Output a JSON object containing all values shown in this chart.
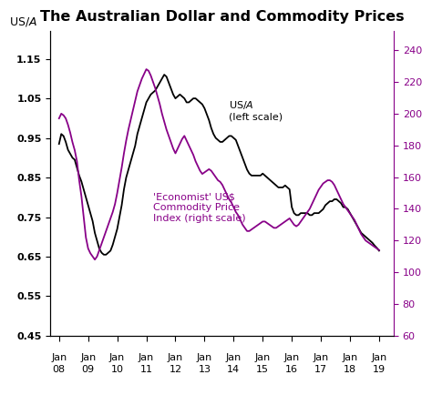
{
  "title": "The Australian Dollar and Commodity Prices",
  "ylabel_left": "US$/A$",
  "ylim_left": [
    0.45,
    1.22
  ],
  "ylim_right": [
    60,
    252
  ],
  "yticks_left": [
    0.45,
    0.55,
    0.65,
    0.75,
    0.85,
    0.95,
    1.05,
    1.15
  ],
  "yticks_right": [
    60,
    80,
    100,
    120,
    140,
    160,
    180,
    200,
    220,
    240
  ],
  "xtick_labels_top": [
    "Jan",
    "Jan",
    "Jan",
    "Jan",
    "Jan",
    "Jan",
    "Jan",
    "Jan",
    "Jan",
    "Jan",
    "Jan",
    "Jan"
  ],
  "xtick_labels_bot": [
    "08",
    "09",
    "10",
    "11",
    "12",
    "13",
    "14",
    "15",
    "16",
    "17",
    "18",
    "19"
  ],
  "line1_color": "#000000",
  "line2_color": "#880088",
  "annotation1": "US$/A$\n(left scale)",
  "annotation2": "'Economist' US$\nCommodity Price\nIndex (right scale)",
  "annotation1_color": "#000000",
  "annotation2_color": "#880088",
  "background_color": "#ffffff",
  "aus_dollar": [
    0.935,
    0.96,
    0.955,
    0.94,
    0.92,
    0.91,
    0.9,
    0.895,
    0.875,
    0.855,
    0.84,
    0.82,
    0.8,
    0.78,
    0.76,
    0.74,
    0.71,
    0.69,
    0.67,
    0.66,
    0.655,
    0.655,
    0.66,
    0.665,
    0.68,
    0.7,
    0.72,
    0.75,
    0.78,
    0.82,
    0.85,
    0.87,
    0.89,
    0.91,
    0.93,
    0.96,
    0.98,
    1.0,
    1.02,
    1.04,
    1.05,
    1.06,
    1.065,
    1.07,
    1.08,
    1.09,
    1.1,
    1.11,
    1.105,
    1.09,
    1.075,
    1.06,
    1.05,
    1.055,
    1.06,
    1.055,
    1.05,
    1.04,
    1.04,
    1.045,
    1.05,
    1.05,
    1.045,
    1.04,
    1.035,
    1.025,
    1.01,
    0.995,
    0.975,
    0.96,
    0.95,
    0.945,
    0.94,
    0.94,
    0.945,
    0.95,
    0.955,
    0.955,
    0.95,
    0.945,
    0.93,
    0.915,
    0.9,
    0.885,
    0.87,
    0.86,
    0.855,
    0.855,
    0.855,
    0.855,
    0.855,
    0.86,
    0.855,
    0.85,
    0.845,
    0.84,
    0.835,
    0.83,
    0.825,
    0.825,
    0.825,
    0.83,
    0.825,
    0.82,
    0.775,
    0.76,
    0.755,
    0.755,
    0.76,
    0.76,
    0.76,
    0.76,
    0.755,
    0.755,
    0.76,
    0.76,
    0.76,
    0.765,
    0.77,
    0.78,
    0.785,
    0.79,
    0.79,
    0.795,
    0.795,
    0.79,
    0.785,
    0.775,
    0.775,
    0.77,
    0.76,
    0.75,
    0.74,
    0.73,
    0.72,
    0.71,
    0.705,
    0.7,
    0.695,
    0.69,
    0.685,
    0.678,
    0.672,
    0.665
  ],
  "commodity": [
    197,
    200,
    199,
    197,
    193,
    188,
    182,
    177,
    170,
    158,
    148,
    135,
    122,
    115,
    112,
    110,
    108,
    110,
    114,
    118,
    122,
    126,
    130,
    134,
    138,
    143,
    150,
    158,
    166,
    175,
    183,
    190,
    196,
    202,
    208,
    214,
    218,
    222,
    225,
    228,
    227,
    224,
    220,
    216,
    211,
    206,
    200,
    195,
    190,
    186,
    182,
    178,
    175,
    178,
    181,
    184,
    186,
    183,
    180,
    177,
    174,
    170,
    167,
    164,
    162,
    163,
    164,
    165,
    164,
    162,
    160,
    158,
    157,
    155,
    152,
    149,
    146,
    144,
    141,
    138,
    136,
    133,
    130,
    128,
    126,
    126,
    127,
    128,
    129,
    130,
    131,
    132,
    132,
    131,
    130,
    129,
    128,
    128,
    129,
    130,
    131,
    132,
    133,
    134,
    132,
    130,
    129,
    130,
    132,
    134,
    136,
    138,
    140,
    143,
    146,
    149,
    152,
    154,
    156,
    157,
    158,
    158,
    157,
    155,
    152,
    149,
    146,
    143,
    141,
    139,
    137,
    135,
    133,
    130,
    127,
    124,
    122,
    120,
    119,
    118,
    117,
    116,
    115,
    114
  ]
}
